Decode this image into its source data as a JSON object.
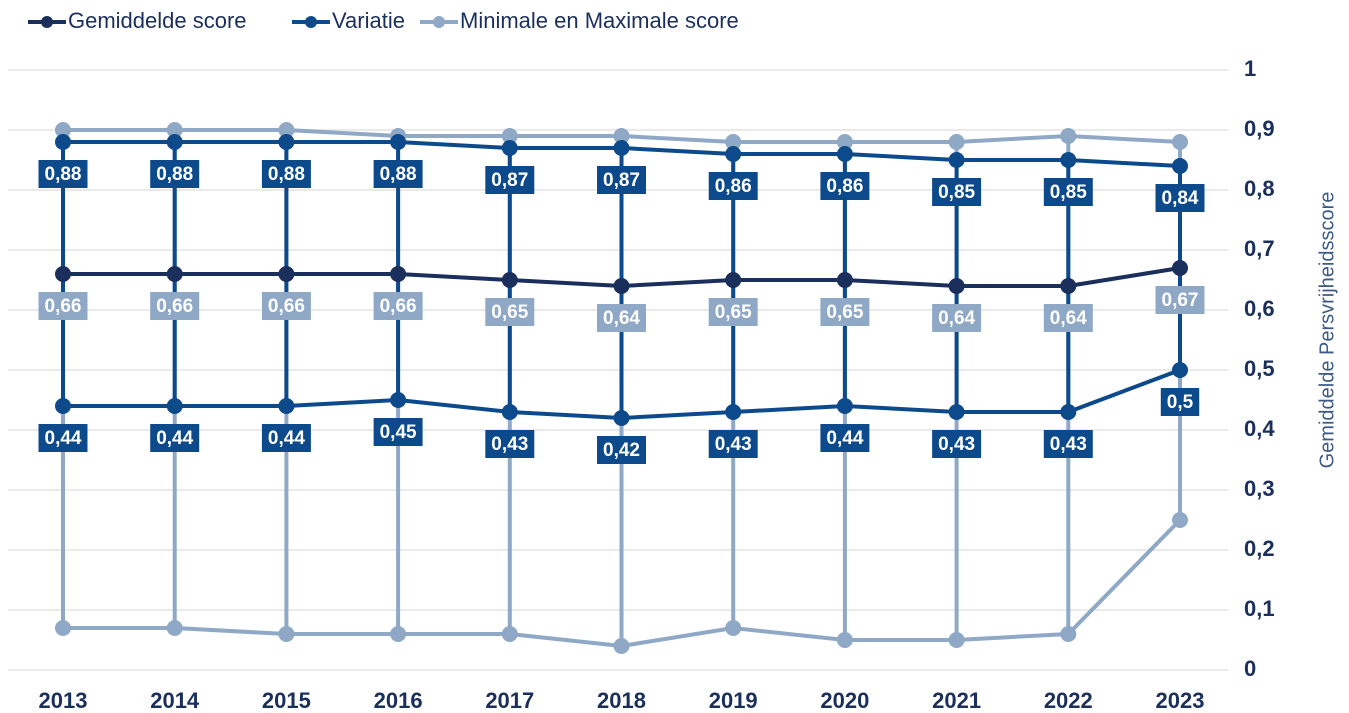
{
  "chart_data": {
    "type": "range-line",
    "categories": [
      "2013",
      "2014",
      "2015",
      "2016",
      "2017",
      "2018",
      "2019",
      "2020",
      "2021",
      "2022",
      "2023"
    ],
    "y_axis_label": "Gemiddelde Persvrijheidsscore",
    "ylim": [
      0,
      1
    ],
    "yticks": [
      0,
      {
        "value": 0.1,
        "label": "0,1"
      },
      {
        "value": 0.2,
        "label": "0,2"
      },
      {
        "value": 0.3,
        "label": "0,3"
      },
      {
        "value": 0.4,
        "label": "0,4"
      },
      {
        "value": 0.5,
        "label": "0,5"
      },
      {
        "value": 0.6,
        "label": "0,6"
      },
      {
        "value": 0.7,
        "label": "0,7"
      },
      {
        "value": 0.8,
        "label": "0,8"
      },
      {
        "value": 0.9,
        "label": "0,9"
      },
      1
    ],
    "grid": true,
    "series": [
      {
        "name": "Gemiddelde score",
        "color": "#1b2f5c",
        "values": [
          0.66,
          0.66,
          0.66,
          0.66,
          0.65,
          0.64,
          0.65,
          0.65,
          0.64,
          0.64,
          0.67
        ],
        "value_labels": [
          "0,66",
          "0,66",
          "0,66",
          "0,66",
          "0,65",
          "0,64",
          "0,65",
          "0,65",
          "0,64",
          "0,64",
          "0,67"
        ],
        "label_color": "#8ea8c6"
      },
      {
        "name": "Variatie",
        "color": "#0d4a8c",
        "high": [
          0.88,
          0.88,
          0.88,
          0.88,
          0.87,
          0.87,
          0.86,
          0.86,
          0.85,
          0.85,
          0.84
        ],
        "high_labels": [
          "0,88",
          "0,88",
          "0,88",
          "0,88",
          "0,87",
          "0,87",
          "0,86",
          "0,86",
          "0,85",
          "0,85",
          "0,84"
        ],
        "low": [
          0.44,
          0.44,
          0.44,
          0.45,
          0.43,
          0.42,
          0.43,
          0.44,
          0.43,
          0.43,
          0.5
        ],
        "low_labels": [
          "0,44",
          "0,44",
          "0,44",
          "0,45",
          "0,43",
          "0,42",
          "0,43",
          "0,44",
          "0,43",
          "0,43",
          "0,5"
        ]
      },
      {
        "name": "Minimale en Maximale score",
        "color": "#8ea8c6",
        "high": [
          0.9,
          0.9,
          0.9,
          0.89,
          0.89,
          0.89,
          0.88,
          0.88,
          0.88,
          0.89,
          0.88
        ],
        "low": [
          0.07,
          0.07,
          0.06,
          0.06,
          0.06,
          0.04,
          0.07,
          0.05,
          0.05,
          0.06,
          0.25
        ]
      }
    ]
  }
}
